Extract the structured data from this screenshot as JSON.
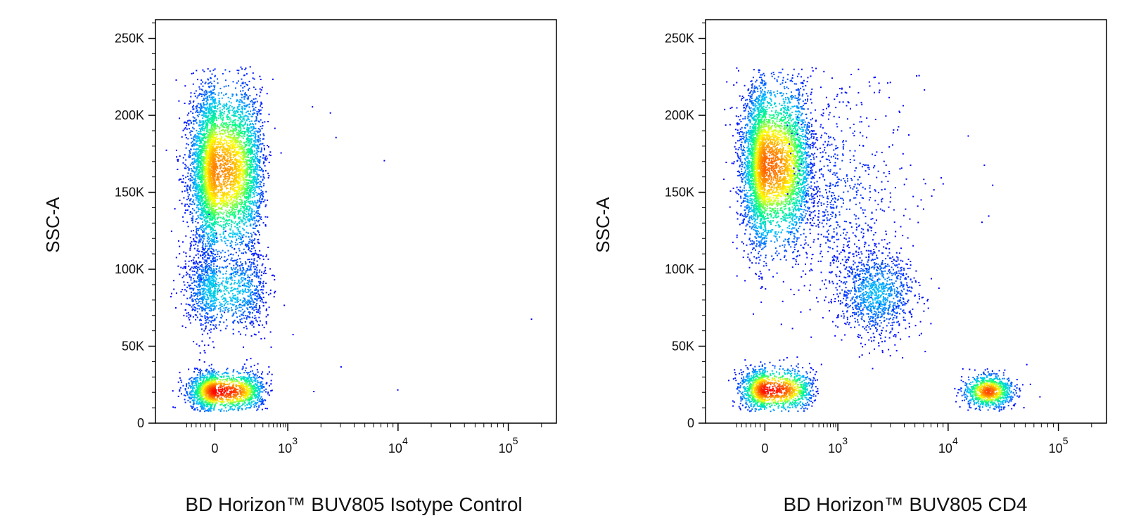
{
  "chart_data": [
    {
      "type": "scatter",
      "xlabel": "BD Horizon™ BUV805 Isotype Control",
      "ylabel": "SSC-A",
      "x_scale": "biexponential",
      "xlim": [
        -300,
        200000
      ],
      "ylim": [
        0,
        262144
      ],
      "x_ticks": [
        {
          "value": 0,
          "base": "0",
          "exp": ""
        },
        {
          "value": 1000,
          "base": "10",
          "exp": "3"
        },
        {
          "value": 10000,
          "base": "10",
          "exp": "4"
        },
        {
          "value": 100000,
          "base": "10",
          "exp": "5"
        }
      ],
      "y_ticks": [
        {
          "value": 0,
          "label": "0"
        },
        {
          "value": 50000,
          "label": "50K"
        },
        {
          "value": 100000,
          "label": "100K"
        },
        {
          "value": 150000,
          "label": "150K"
        },
        {
          "value": 200000,
          "label": "200K"
        },
        {
          "value": 250000,
          "label": "250K"
        }
      ],
      "grid": false,
      "colormap": [
        "#0000ff",
        "#00c0ff",
        "#00ff80",
        "#ffff00",
        "#ff8000",
        "#ff0000"
      ],
      "populations": [
        {
          "x": 0,
          "y": 165000,
          "x_spread": 130,
          "y_spread": 27000,
          "count": 5200,
          "peak_density": 0.8
        },
        {
          "x": 0,
          "y": 87000,
          "x_spread": 160,
          "y_spread": 13000,
          "count": 1300,
          "peak_density": 0.25
        },
        {
          "x": 0,
          "y": 21000,
          "x_spread": 140,
          "y_spread": 6500,
          "count": 1800,
          "peak_density": 1.0
        }
      ],
      "outliers": [
        {
          "x": 1650,
          "y": 206000
        },
        {
          "x": 2400,
          "y": 202000
        },
        {
          "x": 2700,
          "y": 186000
        },
        {
          "x": 7400,
          "y": 171000
        },
        {
          "x": 3000,
          "y": 37000
        },
        {
          "x": 1700,
          "y": 21000
        },
        {
          "x": 9800,
          "y": 22000
        },
        {
          "x": 160000,
          "y": 68000
        },
        {
          "x": 1100,
          "y": 58000
        },
        {
          "x": 820,
          "y": 77000
        },
        {
          "x": 520,
          "y": 192000
        },
        {
          "x": 700,
          "y": 176000
        }
      ]
    },
    {
      "type": "scatter",
      "xlabel": "BD Horizon™ BUV805 CD4",
      "ylabel": "SSC-A",
      "x_scale": "biexponential",
      "xlim": [
        -300,
        200000
      ],
      "ylim": [
        0,
        262144
      ],
      "x_ticks": [
        {
          "value": 0,
          "base": "0",
          "exp": ""
        },
        {
          "value": 1000,
          "base": "10",
          "exp": "3"
        },
        {
          "value": 10000,
          "base": "10",
          "exp": "4"
        },
        {
          "value": 100000,
          "base": "10",
          "exp": "5"
        }
      ],
      "y_ticks": [
        {
          "value": 0,
          "label": "0"
        },
        {
          "value": 50000,
          "label": "50K"
        },
        {
          "value": 100000,
          "label": "100K"
        },
        {
          "value": 150000,
          "label": "150K"
        },
        {
          "value": 200000,
          "label": "200K"
        },
        {
          "value": 250000,
          "label": "250K"
        }
      ],
      "grid": false,
      "colormap": [
        "#0000ff",
        "#00c0ff",
        "#00ff80",
        "#ffff00",
        "#ff8000",
        "#ff0000"
      ],
      "populations": [
        {
          "x": 0,
          "y": 168000,
          "x_spread": 120,
          "y_spread": 26000,
          "count": 4800,
          "peak_density": 0.85
        },
        {
          "x": 2200,
          "y": 85000,
          "x_spread": 0.18,
          "y_spread": 14000,
          "count": 1100,
          "peak_density": 0.2,
          "log": true
        },
        {
          "x": 0,
          "y": 22000,
          "x_spread": 130,
          "y_spread": 7000,
          "count": 1500,
          "peak_density": 1.0
        },
        {
          "x": 23000,
          "y": 21000,
          "x_spread": 0.11,
          "y_spread": 5500,
          "count": 1000,
          "peak_density": 0.9,
          "log": true
        },
        {
          "x": 900,
          "y": 150000,
          "x_spread": 0.35,
          "y_spread": 40000,
          "count": 700,
          "peak_density": 0.06,
          "log": true
        }
      ],
      "outliers": [
        {
          "x": 2100,
          "y": 225000
        },
        {
          "x": 1300,
          "y": 227000
        },
        {
          "x": 15000,
          "y": 187000
        },
        {
          "x": 21000,
          "y": 168000
        },
        {
          "x": 25000,
          "y": 155000
        },
        {
          "x": 23000,
          "y": 135000
        },
        {
          "x": 20000,
          "y": 131000
        },
        {
          "x": 7000,
          "y": 148000
        },
        {
          "x": 4500,
          "y": 168000
        },
        {
          "x": 3500,
          "y": 193000
        }
      ]
    }
  ]
}
